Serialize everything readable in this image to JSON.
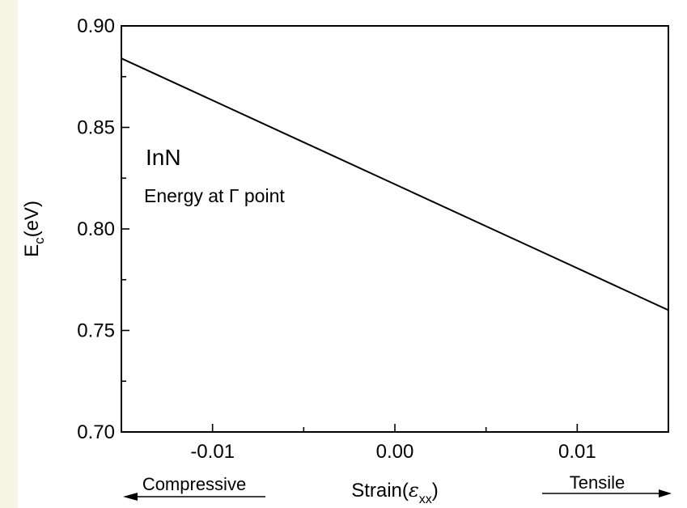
{
  "chart_data": {
    "type": "line",
    "xlabel_main": "Strain(",
    "xlabel_symbol": "ε",
    "xlabel_subscript": "xx",
    "xlabel_close": ")",
    "ylabel_main": "E",
    "ylabel_subscript": "c",
    "ylabel_unit": "(eV)",
    "xlim": [
      -0.015,
      0.015
    ],
    "ylim": [
      0.7,
      0.9
    ],
    "x_ticks": [
      -0.01,
      0.0,
      0.01
    ],
    "x_tick_labels": [
      "-0.01",
      "0.00",
      "0.01"
    ],
    "y_ticks": [
      0.7,
      0.75,
      0.8,
      0.85,
      0.9
    ],
    "y_tick_labels": [
      "0.70",
      "0.75",
      "0.80",
      "0.85",
      "0.90"
    ],
    "series": [
      {
        "x": [
          -0.015,
          0.015
        ],
        "y": [
          0.884,
          0.76
        ]
      }
    ],
    "annotations": {
      "material": "InN",
      "description": "Energy at Γ point"
    },
    "bottom_labels": {
      "left": "Compressive",
      "right": "Tensile"
    },
    "grid": false,
    "colors": {
      "line": "#000000",
      "background": "#ffffff",
      "side_tint": "#f7f5e6"
    }
  }
}
